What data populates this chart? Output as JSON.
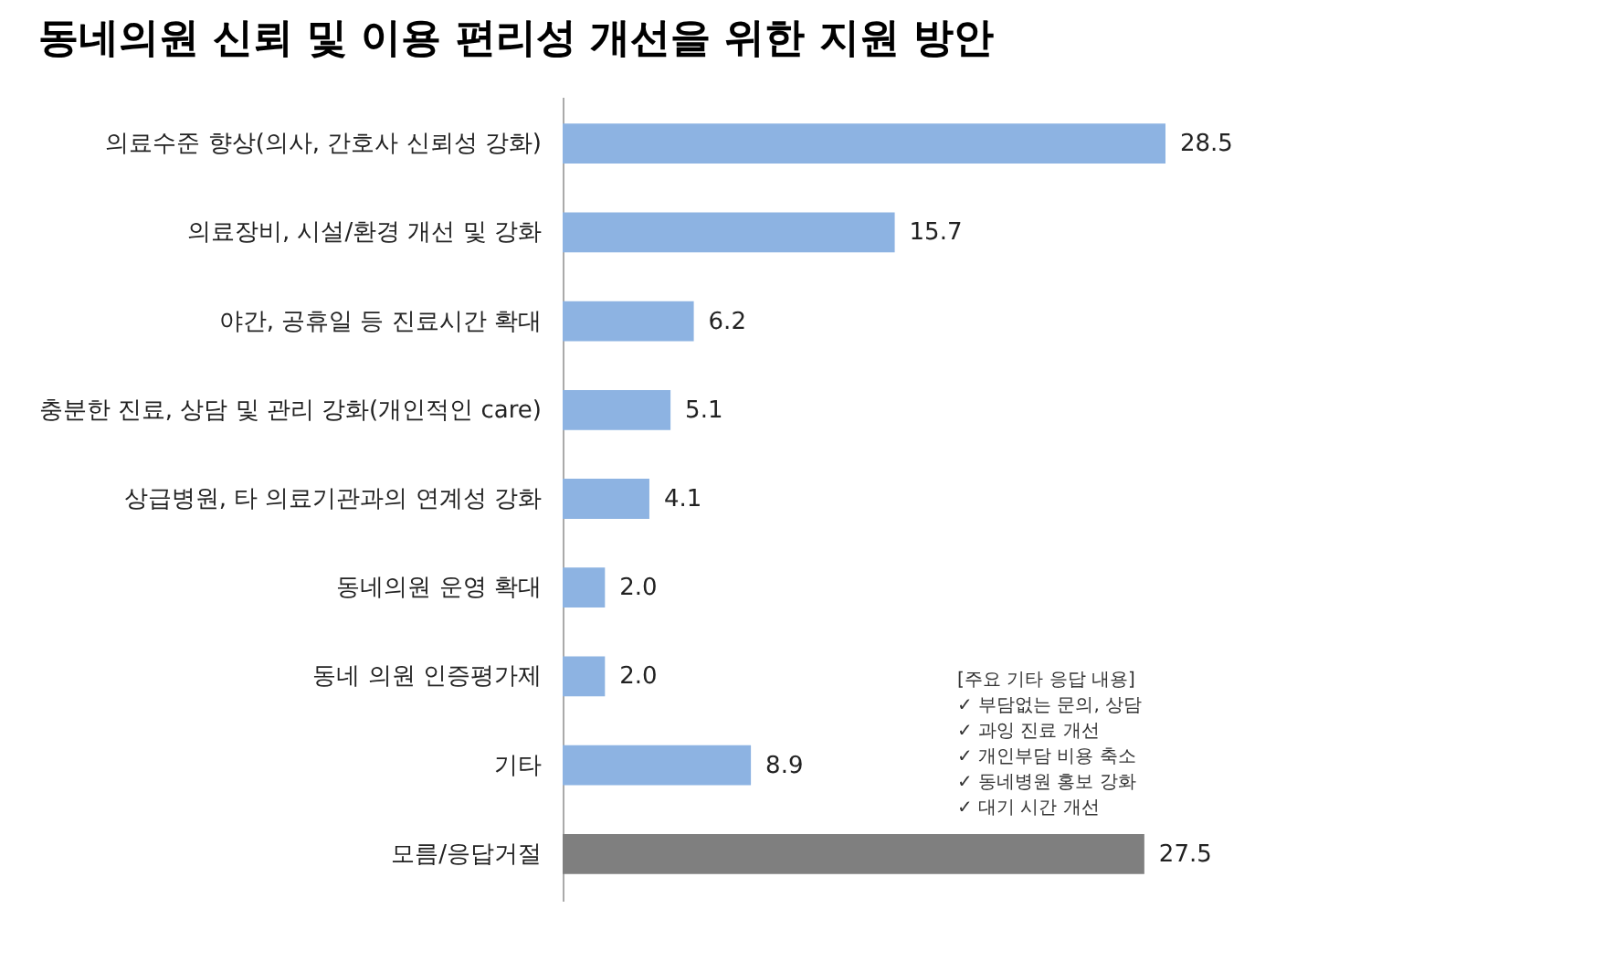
{
  "chart_data": {
    "type": "bar",
    "orientation": "horizontal",
    "title": "동네의원 신뢰 및 이용 편리성 개선을 위한 지원 방안",
    "categories": [
      "의료수준 향상(의사, 간호사 신뢰성 강화)",
      "의료장비, 시설/환경 개선 및 강화",
      "야간, 공휴일 등 진료시간 확대",
      "충분한 진료, 상담 및 관리 강화(개인적인 care)",
      "상급병원, 타 의료기관과의 연계성 강화",
      "동네의원 운영 확대",
      "동네 의원 인증평가제",
      "기타",
      "모름/응답거절"
    ],
    "values": [
      28.5,
      15.7,
      6.2,
      5.1,
      4.1,
      2.0,
      2.0,
      8.9,
      27.5
    ],
    "value_labels": [
      "28.5",
      "15.7",
      "6.2",
      "5.1",
      "4.1",
      "2.0",
      "2.0",
      "8.9",
      "27.5"
    ],
    "colors": [
      "#8db3e2",
      "#8db3e2",
      "#8db3e2",
      "#8db3e2",
      "#8db3e2",
      "#8db3e2",
      "#8db3e2",
      "#8db3e2",
      "#7f7f7f"
    ],
    "tick_labels": "y",
    "annotations": [
      "[주요 기타 응답 내용]",
      "✓ 부담없는 문의, 상담",
      "✓ 과잉 진료 개선",
      "✓ 개인부담 비용 축소",
      "✓ 동네병원 홍보 강화",
      "✓ 대기 시간 개선"
    ]
  }
}
